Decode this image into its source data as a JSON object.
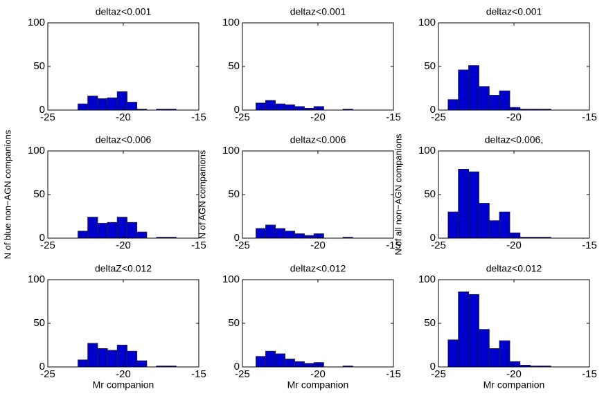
{
  "chart_data": [
    {
      "type": "histogram",
      "title": "deltaz<0.001",
      "bins": [
        -23,
        -22.35,
        -21.7,
        -21.05,
        -20.4,
        -19.75,
        -19.1,
        -18.45,
        -17.8,
        -17.15,
        -16.5
      ],
      "values": [
        7,
        16,
        13,
        14,
        21,
        9,
        1,
        0,
        1,
        1
      ],
      "color": "#0000cc",
      "xlim": [
        -25,
        -15
      ],
      "ylim": [
        0,
        100
      ],
      "xticks": [
        -25,
        -20,
        -15
      ],
      "yticks": [
        0,
        50,
        100
      ]
    },
    {
      "type": "histogram",
      "title": "deltaz<0.001",
      "bins": [
        -24.1,
        -23.46,
        -22.82,
        -22.18,
        -21.54,
        -20.9,
        -20.26,
        -19.62,
        -18.98,
        -18.34,
        -17.7
      ],
      "values": [
        8,
        11,
        7,
        6,
        4,
        2,
        4,
        0,
        0,
        1
      ],
      "color": "#0000cc",
      "xlim": [
        -25,
        -15
      ],
      "ylim": [
        0,
        100
      ],
      "xticks": [
        -25,
        -20,
        -15
      ],
      "yticks": [
        0,
        50,
        100
      ]
    },
    {
      "type": "histogram",
      "title": "deltaz<0.001",
      "bins": [
        -24.36,
        -23.68,
        -23.0,
        -22.32,
        -21.64,
        -20.96,
        -20.28,
        -19.6,
        -18.92,
        -18.24,
        -17.56
      ],
      "values": [
        12,
        46,
        51,
        27,
        17,
        22,
        3,
        1,
        1,
        1
      ],
      "color": "#0000cc",
      "xlim": [
        -25,
        -15
      ],
      "ylim": [
        0,
        100
      ],
      "xticks": [
        -25,
        -20,
        -15
      ],
      "yticks": [
        0,
        50,
        100
      ]
    },
    {
      "type": "histogram",
      "title": "deltaz<0.006",
      "ylabel": "N of blue non−AGN companions",
      "bins": [
        -23,
        -22.35,
        -21.7,
        -21.05,
        -20.4,
        -19.75,
        -19.1,
        -18.45,
        -17.8,
        -17.15,
        -16.5
      ],
      "values": [
        8,
        24,
        17,
        18,
        24,
        18,
        7,
        0,
        1,
        1
      ],
      "color": "#0000cc",
      "xlim": [
        -25,
        -15
      ],
      "ylim": [
        0,
        100
      ],
      "xticks": [
        -25,
        -20,
        -15
      ],
      "yticks": [
        0,
        50,
        100
      ]
    },
    {
      "type": "histogram",
      "title": "deltaz<0.006",
      "ylabel": "N of AGN companions",
      "bins": [
        -24.1,
        -23.46,
        -22.82,
        -22.18,
        -21.54,
        -20.9,
        -20.26,
        -19.62,
        -18.98,
        -18.34,
        -17.7
      ],
      "values": [
        11,
        15,
        11,
        8,
        5,
        3,
        5,
        0,
        0,
        1
      ],
      "color": "#0000cc",
      "xlim": [
        -25,
        -15
      ],
      "ylim": [
        0,
        100
      ],
      "xticks": [
        -25,
        -20,
        -15
      ],
      "yticks": [
        0,
        50,
        100
      ]
    },
    {
      "type": "histogram",
      "title": "deltaz<0.006,",
      "ylabel": "N of all non−AGN companions",
      "bins": [
        -24.36,
        -23.68,
        -23.0,
        -22.32,
        -21.64,
        -20.96,
        -20.28,
        -19.6,
        -18.92,
        -18.24,
        -17.56
      ],
      "values": [
        30,
        79,
        76,
        40,
        20,
        30,
        6,
        1,
        1,
        1
      ],
      "color": "#0000cc",
      "xlim": [
        -25,
        -15
      ],
      "ylim": [
        0,
        100
      ],
      "xticks": [
        -25,
        -20,
        -15
      ],
      "yticks": [
        0,
        50,
        100
      ]
    },
    {
      "type": "histogram",
      "title": "deltaZ<0.012",
      "xlabel": "Mr companion",
      "bins": [
        -23,
        -22.35,
        -21.7,
        -21.05,
        -20.4,
        -19.75,
        -19.1,
        -18.45,
        -17.8,
        -17.15,
        -16.5
      ],
      "values": [
        8,
        27,
        21,
        19,
        25,
        18,
        7,
        0,
        1,
        1
      ],
      "color": "#0000cc",
      "xlim": [
        -25,
        -15
      ],
      "ylim": [
        0,
        100
      ],
      "xticks": [
        -25,
        -20,
        -15
      ],
      "yticks": [
        0,
        50,
        100
      ]
    },
    {
      "type": "histogram",
      "title": "deltaz<0.012",
      "xlabel": "Mr companion",
      "bins": [
        -24.1,
        -23.46,
        -22.82,
        -22.18,
        -21.54,
        -20.9,
        -20.26,
        -19.62,
        -18.98,
        -18.34,
        -17.7
      ],
      "values": [
        12,
        18,
        15,
        9,
        6,
        4,
        5,
        0,
        0,
        1
      ],
      "color": "#0000cc",
      "xlim": [
        -25,
        -15
      ],
      "ylim": [
        0,
        100
      ],
      "xticks": [
        -25,
        -20,
        -15
      ],
      "yticks": [
        0,
        50,
        100
      ]
    },
    {
      "type": "histogram",
      "title": "deltaz<0.012",
      "xlabel": "Mr companion",
      "bins": [
        -24.36,
        -23.68,
        -23.0,
        -22.32,
        -21.64,
        -20.96,
        -20.28,
        -19.6,
        -18.92,
        -18.24,
        -17.56
      ],
      "values": [
        31,
        86,
        83,
        43,
        21,
        30,
        6,
        2,
        1,
        1
      ],
      "color": "#0000cc",
      "xlim": [
        -25,
        -15
      ],
      "ylim": [
        0,
        100
      ],
      "xticks": [
        -25,
        -20,
        -15
      ],
      "yticks": [
        0,
        50,
        100
      ]
    }
  ]
}
